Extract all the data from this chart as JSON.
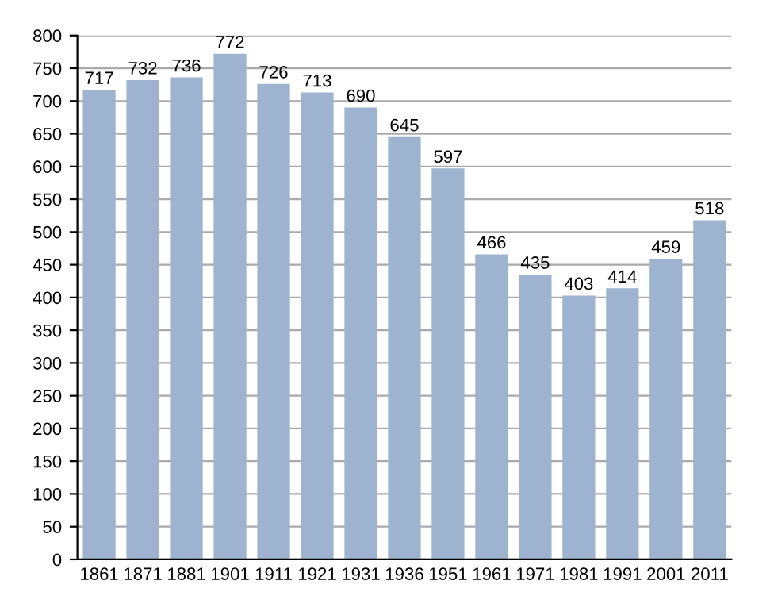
{
  "chart_data": {
    "type": "bar",
    "categories": [
      "1861",
      "1871",
      "1881",
      "1901",
      "1911",
      "1921",
      "1931",
      "1936",
      "1951",
      "1961",
      "1971",
      "1981",
      "1991",
      "2001",
      "2011"
    ],
    "values": [
      717,
      732,
      736,
      772,
      726,
      713,
      690,
      645,
      597,
      466,
      435,
      403,
      414,
      459,
      518
    ],
    "color": "#9db3cf",
    "ylim": [
      0,
      800
    ],
    "yticks": [
      0,
      50,
      100,
      150,
      200,
      250,
      300,
      350,
      400,
      450,
      500,
      550,
      600,
      650,
      700,
      750,
      800
    ],
    "grid": "y",
    "data_labels": true
  }
}
